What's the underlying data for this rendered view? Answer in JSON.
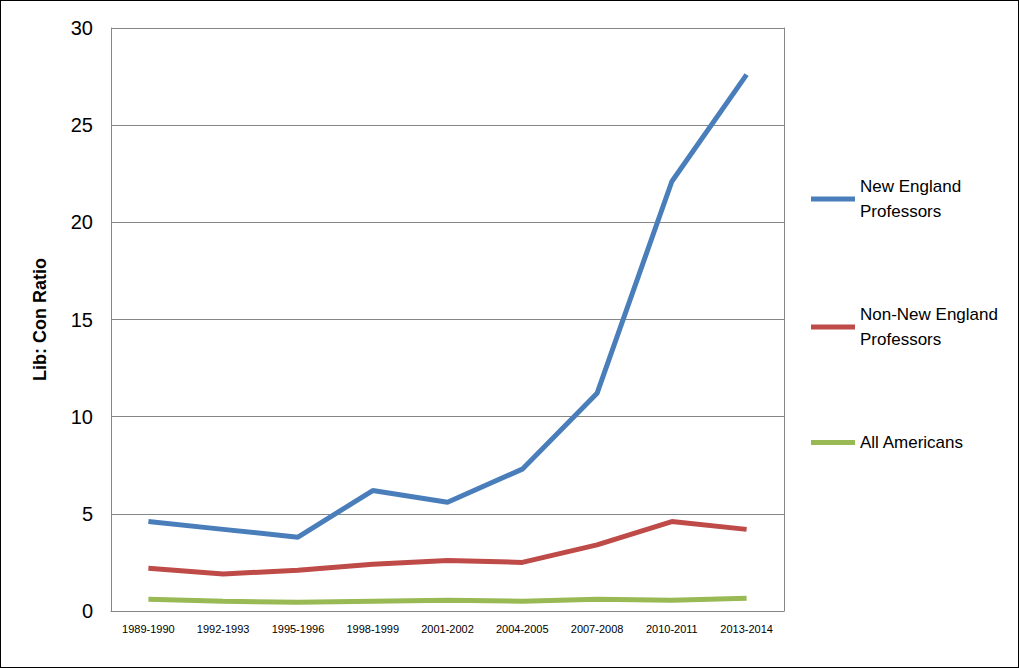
{
  "chart_data": {
    "type": "line",
    "y_label": "Lib: Con Ratio",
    "categories": [
      "1989-1990",
      "1992-1993",
      "1995-1996",
      "1998-1999",
      "2001-2002",
      "2004-2005",
      "2007-2008",
      "2010-2011",
      "2013-2014"
    ],
    "series": [
      {
        "name": "New England Professors",
        "color": "#4a7ebb",
        "values": [
          4.6,
          4.2,
          3.8,
          6.2,
          5.6,
          7.3,
          11.2,
          22.1,
          27.6
        ]
      },
      {
        "name": "Non-New England Professors",
        "color": "#be4b48",
        "values": [
          2.2,
          1.9,
          2.1,
          2.4,
          2.6,
          2.5,
          3.4,
          4.6,
          4.2
        ]
      },
      {
        "name": "All Americans",
        "color": "#98b954",
        "values": [
          0.6,
          0.5,
          0.45,
          0.5,
          0.55,
          0.5,
          0.6,
          0.55,
          0.65
        ]
      }
    ],
    "ylim": [
      0,
      30
    ],
    "yticks": [
      0,
      5,
      10,
      15,
      20,
      25,
      30
    ],
    "grid": true,
    "legend": "right"
  }
}
